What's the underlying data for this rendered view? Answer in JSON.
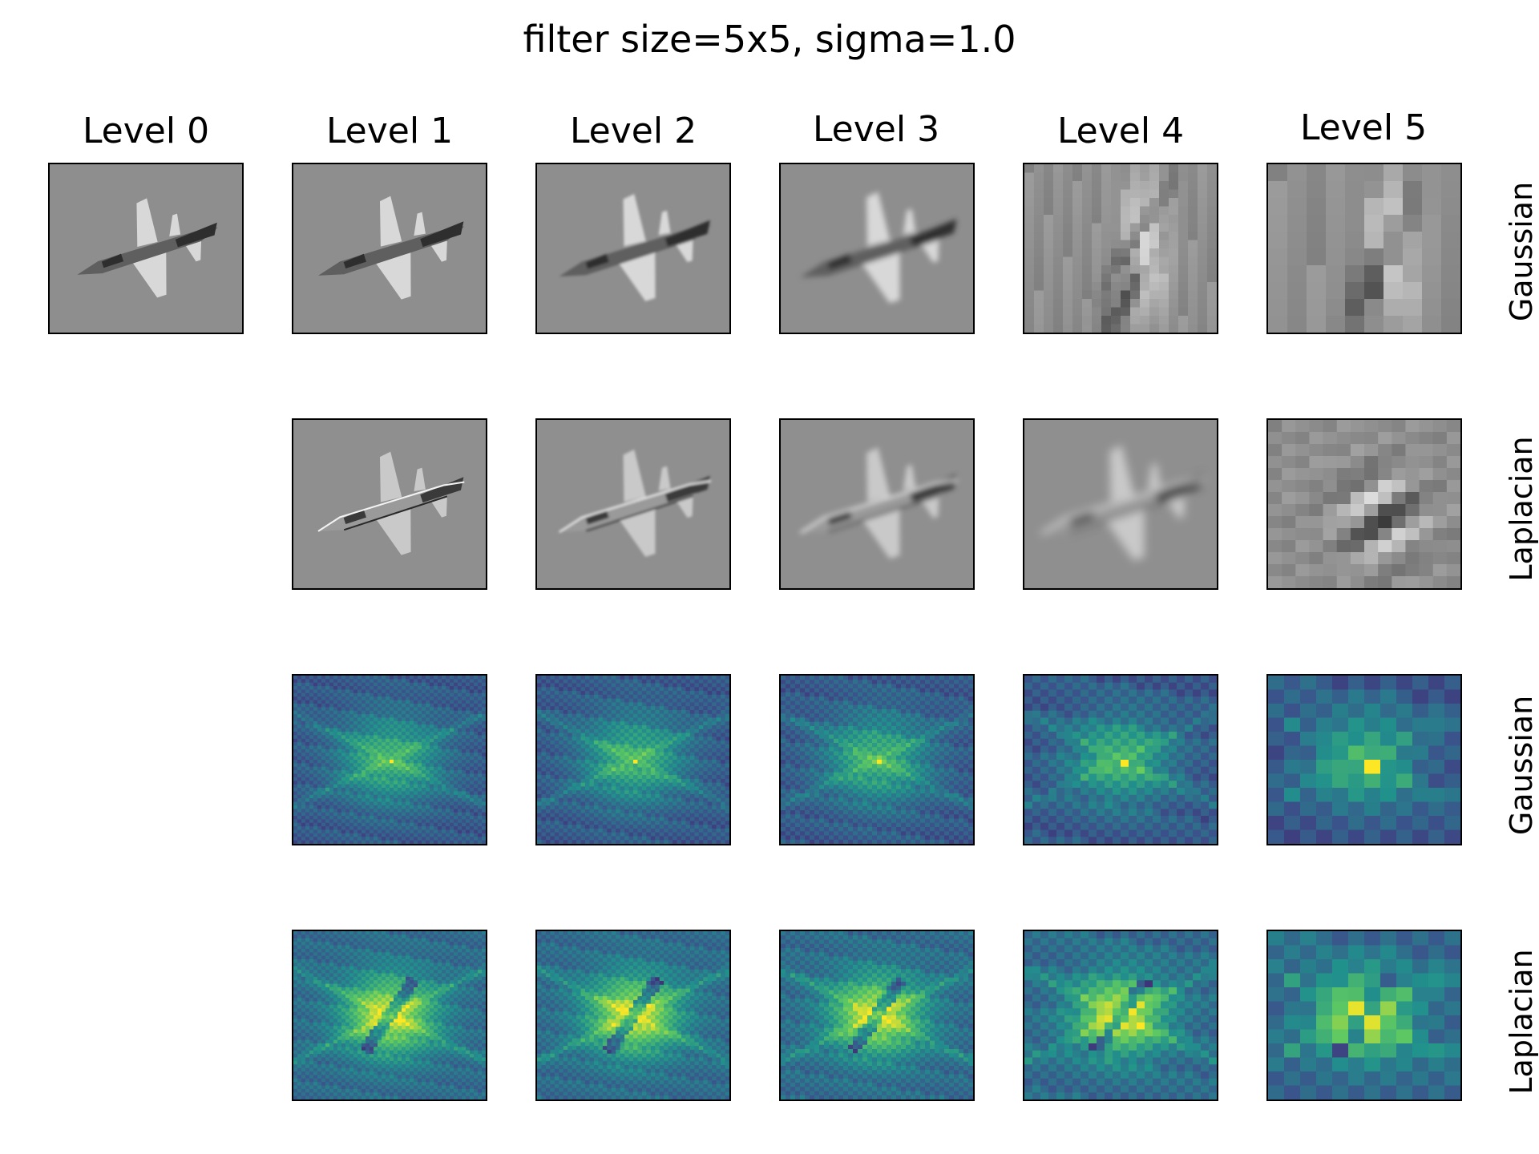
{
  "figure": {
    "title": "filter size=5x5, sigma=1.0",
    "column_titles": [
      "Level 0",
      "Level 1",
      "Level 2",
      "Level 3",
      "Level 4",
      "Level 5"
    ],
    "row_labels": [
      "Gaussian",
      "Laplacian",
      "Gaussian",
      "Laplacian"
    ],
    "colors": {
      "grayscale_background": "#8e8e8e",
      "viridis_dark": "#440154",
      "viridis_mid": "#21918c",
      "viridis_bright": "#fde725"
    },
    "panels": [
      {
        "row": 0,
        "level": 0,
        "kind": "gaussian-image"
      },
      {
        "row": 0,
        "level": 1,
        "kind": "gaussian-image"
      },
      {
        "row": 0,
        "level": 2,
        "kind": "gaussian-image"
      },
      {
        "row": 0,
        "level": 3,
        "kind": "gaussian-image"
      },
      {
        "row": 0,
        "level": 4,
        "kind": "gaussian-image"
      },
      {
        "row": 0,
        "level": 5,
        "kind": "gaussian-image"
      },
      {
        "row": 1,
        "level": 1,
        "kind": "laplacian-image"
      },
      {
        "row": 1,
        "level": 2,
        "kind": "laplacian-image"
      },
      {
        "row": 1,
        "level": 3,
        "kind": "laplacian-image"
      },
      {
        "row": 1,
        "level": 4,
        "kind": "laplacian-image"
      },
      {
        "row": 1,
        "level": 5,
        "kind": "laplacian-image"
      },
      {
        "row": 2,
        "level": 1,
        "kind": "gaussian-spectrum"
      },
      {
        "row": 2,
        "level": 2,
        "kind": "gaussian-spectrum"
      },
      {
        "row": 2,
        "level": 3,
        "kind": "gaussian-spectrum"
      },
      {
        "row": 2,
        "level": 4,
        "kind": "gaussian-spectrum"
      },
      {
        "row": 2,
        "level": 5,
        "kind": "gaussian-spectrum"
      },
      {
        "row": 3,
        "level": 1,
        "kind": "laplacian-spectrum"
      },
      {
        "row": 3,
        "level": 2,
        "kind": "laplacian-spectrum"
      },
      {
        "row": 3,
        "level": 3,
        "kind": "laplacian-spectrum"
      },
      {
        "row": 3,
        "level": 4,
        "kind": "laplacian-spectrum"
      },
      {
        "row": 3,
        "level": 5,
        "kind": "laplacian-spectrum"
      }
    ]
  }
}
